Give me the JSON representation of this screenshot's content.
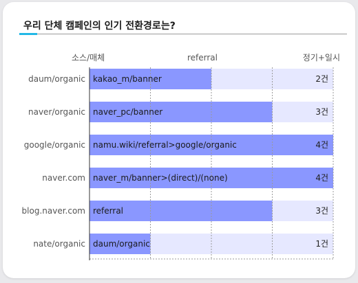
{
  "title": "우리 단체 캠페인의 인기 전환경로는?",
  "colors": {
    "accent": "#22b8e6",
    "bar": "#8a97ff",
    "track": "#e6e8ff",
    "grid": "#9a9a9a"
  },
  "chart_data": {
    "type": "bar",
    "orientation": "horizontal",
    "title": "우리 단체 캠페인의 인기 전환경로는?",
    "header_left": "소스/매체",
    "header_center": "referral",
    "header_right": "정기+일시",
    "value_unit": "건",
    "xlim": [
      0,
      4
    ],
    "grid": true,
    "categories": [
      "daum/organic",
      "naver/organic",
      "google/organic",
      "naver.com",
      "blog.naver.com",
      "nate/organic"
    ],
    "bar_labels": [
      "kakao_m/banner",
      "naver_pc/banner",
      "namu.wiki/referral>google/organic",
      "naver_m/banner>(direct)/(none)",
      "referral",
      "daum/organic"
    ],
    "values": [
      2,
      3,
      4,
      4,
      3,
      1
    ],
    "value_labels": [
      "2건",
      "3건",
      "4건",
      "4건",
      "3건",
      "1건"
    ]
  }
}
